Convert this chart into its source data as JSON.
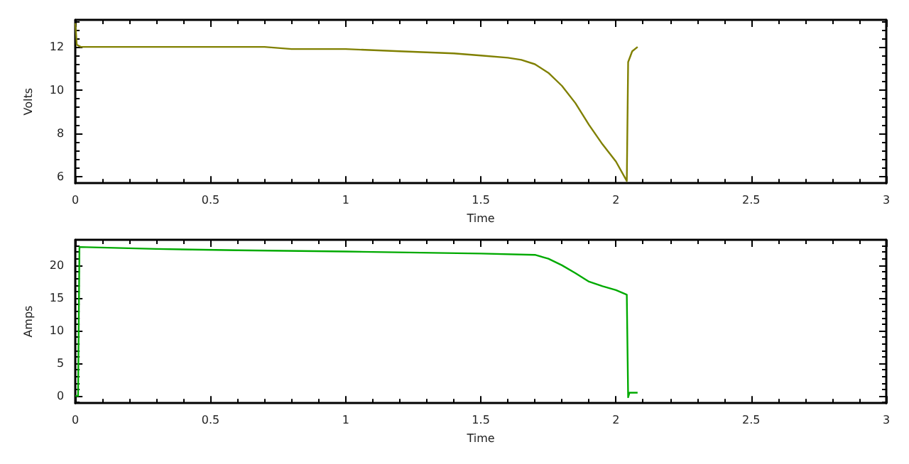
{
  "chart_data": [
    {
      "type": "line",
      "xlabel": "Time",
      "ylabel": "Volts",
      "xlim": [
        0,
        3
      ],
      "xticks": [
        0,
        0.5,
        1,
        1.5,
        2,
        2.5,
        3
      ],
      "ylim": [
        5.7,
        13.25
      ],
      "yticks": [
        6,
        8,
        10,
        12
      ],
      "marker": "none",
      "line_style": "solid",
      "x": [
        0,
        0.005,
        0.02,
        0.2,
        0.7,
        0.8,
        1.0,
        1.2,
        1.4,
        1.5,
        1.6,
        1.65,
        1.7,
        1.75,
        1.8,
        1.85,
        1.9,
        1.95,
        2.0,
        2.04,
        2.045,
        2.06,
        2.08
      ],
      "series": [
        {
          "color": "#808000",
          "values": [
            13.1,
            12.1,
            12.0,
            12.0,
            12.0,
            11.9,
            11.9,
            11.8,
            11.7,
            11.6,
            11.5,
            11.4,
            11.2,
            10.8,
            10.2,
            9.4,
            8.4,
            7.5,
            6.7,
            5.8,
            11.3,
            11.8,
            12.0
          ]
        }
      ]
    },
    {
      "type": "line",
      "xlabel": "Time",
      "ylabel": "Amps",
      "xlim": [
        0,
        3
      ],
      "xticks": [
        0,
        0.5,
        1,
        1.5,
        2,
        2.5,
        3
      ],
      "ylim": [
        -1.1,
        23.9
      ],
      "yticks": [
        0,
        5,
        10,
        15,
        20
      ],
      "marker": "none",
      "line_style": "solid",
      "x": [
        0,
        0.01,
        0.015,
        0.3,
        0.6,
        1.0,
        1.5,
        1.7,
        1.75,
        1.8,
        1.85,
        1.9,
        1.95,
        2.0,
        2.04,
        2.045,
        2.05,
        2.08
      ],
      "series": [
        {
          "color": "#00aa00",
          "values": [
            0,
            0,
            22.8,
            22.5,
            22.3,
            22.1,
            21.8,
            21.6,
            21.0,
            20.0,
            18.8,
            17.5,
            16.8,
            16.2,
            15.5,
            -0.2,
            0.5,
            0.5
          ]
        }
      ]
    }
  ]
}
